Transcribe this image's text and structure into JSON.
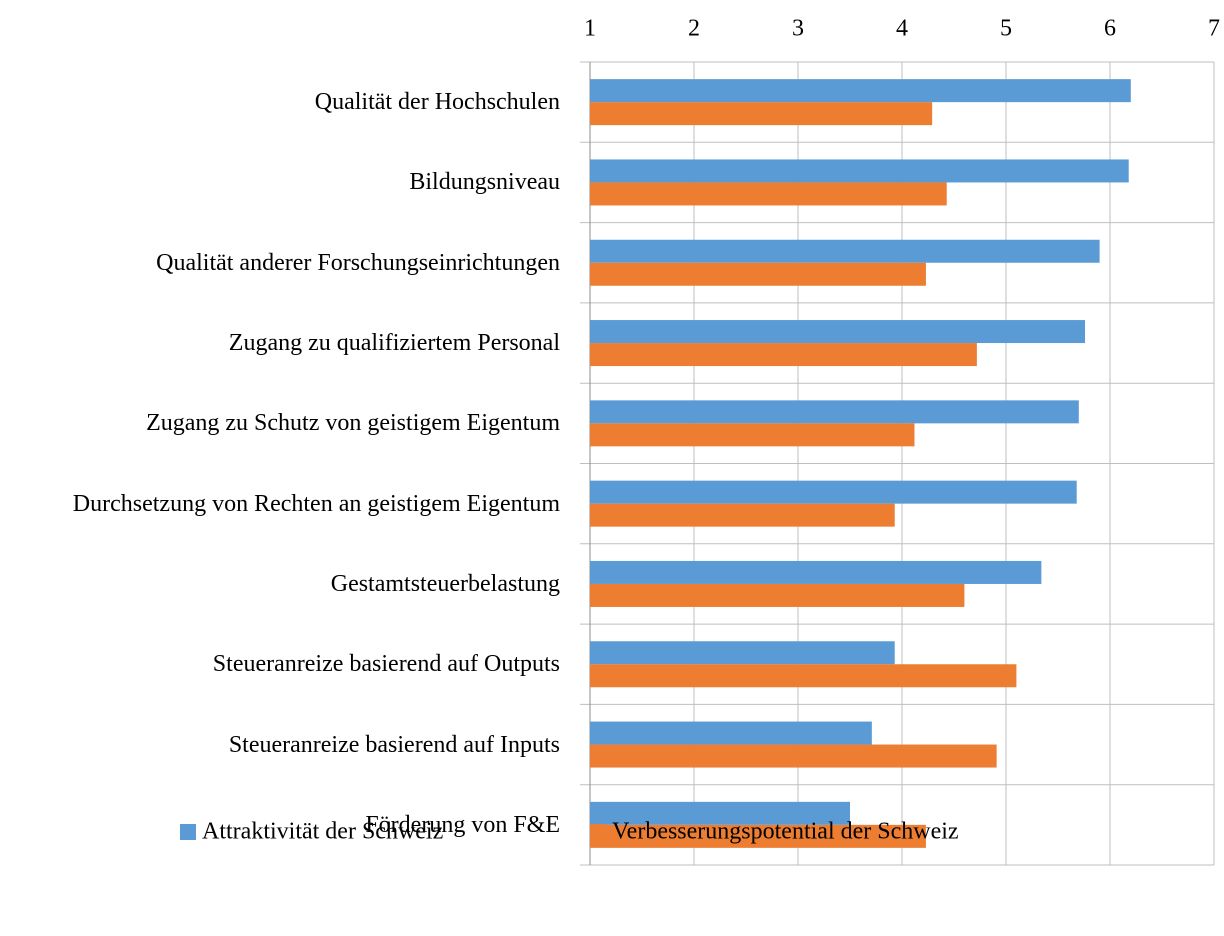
{
  "chart_data": {
    "type": "bar",
    "orientation": "horizontal",
    "categories": [
      "Qualität der Hochschulen",
      "Bildungsniveau",
      "Qualität anderer Forschungseinrichtungen",
      "Zugang zu qualifiziertem Personal",
      "Zugang zu Schutz von geistigem Eigentum",
      "Durchsetzung von Rechten an geistigem Eigentum",
      "Gestamtsteuerbelastung",
      "Steueranreize basierend auf Outputs",
      "Steueranreize basierend auf Inputs",
      "Förderung von F&E"
    ],
    "series": [
      {
        "name": "Attraktivität der Schweiz",
        "color": "#5b9bd5",
        "values": [
          6.2,
          6.18,
          5.9,
          5.76,
          5.7,
          5.68,
          5.34,
          3.93,
          3.71,
          3.5
        ]
      },
      {
        "name": "Verbesserungspotential der Schweiz",
        "color": "#ed7d31",
        "values": [
          4.29,
          4.43,
          4.23,
          4.72,
          4.12,
          3.93,
          4.6,
          5.1,
          4.91,
          4.23
        ]
      }
    ],
    "xlim": [
      1,
      7
    ],
    "xticks": [
      1,
      2,
      3,
      4,
      5,
      6,
      7
    ],
    "grid": true,
    "legend": "bottom"
  }
}
